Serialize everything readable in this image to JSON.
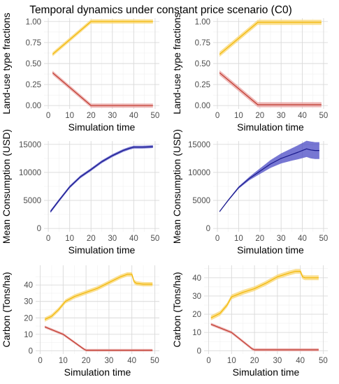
{
  "title": "Temporal dynamics under constant price scenario (C0)",
  "colors": {
    "yellow": "#F2B705",
    "yellow_band": "#F9D56E",
    "red": "#C0392B",
    "red_band": "#E8A0A0",
    "blue": "#1A1A8C",
    "blue_band": "#4A4AC4"
  },
  "chart_data": [
    {
      "type": "line",
      "xlabel": "Simulation time",
      "ylabel": "Land-use type fractions",
      "xlim": [
        0,
        50
      ],
      "ylim": [
        0,
        1
      ],
      "xticks": [
        "0",
        "10",
        "20",
        "30",
        "40",
        "50"
      ],
      "yticks": [
        "0.00",
        "0.25",
        "0.50",
        "0.75",
        "1.00"
      ],
      "grid": true,
      "series": [
        {
          "color": "yellow",
          "band": 0.025,
          "x": [
            2,
            20,
            49
          ],
          "y": [
            0.61,
            1.0,
            1.0
          ]
        },
        {
          "color": "red",
          "band": 0.025,
          "x": [
            2,
            20,
            49
          ],
          "y": [
            0.39,
            0.0,
            0.0
          ]
        }
      ]
    },
    {
      "type": "line",
      "xlabel": "Simulation time",
      "ylabel": "Land-use type fractions",
      "xlim": [
        0,
        50
      ],
      "ylim": [
        0,
        1
      ],
      "xticks": [
        "0",
        "10",
        "20",
        "30",
        "40",
        "50"
      ],
      "yticks": [
        "0.00",
        "0.25",
        "0.50",
        "0.75",
        "1.00"
      ],
      "grid": true,
      "series": [
        {
          "color": "yellow",
          "band": 0.03,
          "x": [
            1,
            19,
            49
          ],
          "y": [
            0.61,
            0.99,
            0.99
          ]
        },
        {
          "color": "red",
          "band": 0.03,
          "x": [
            1,
            19,
            49
          ],
          "y": [
            0.39,
            0.01,
            0.01
          ]
        }
      ]
    },
    {
      "type": "line",
      "xlabel": "Simulation time",
      "ylabel": "Mean Consumption (USD)",
      "xlim": [
        0,
        50
      ],
      "ylim": [
        0,
        15000
      ],
      "xticks": [
        "0",
        "10",
        "20",
        "30",
        "40",
        "50"
      ],
      "yticks": [
        "0",
        "5000",
        "10000",
        "15000"
      ],
      "grid": true,
      "series": [
        {
          "color": "blue",
          "band": 250,
          "x": [
            1,
            5,
            10,
            15,
            20,
            25,
            30,
            35,
            38,
            40,
            44,
            47,
            49
          ],
          "y": [
            3000,
            5000,
            7400,
            9200,
            10500,
            11900,
            13000,
            13900,
            14300,
            14500,
            14500,
            14550,
            14600
          ]
        }
      ]
    },
    {
      "type": "line",
      "xlabel": "Simulation time",
      "ylabel": "Mean Consumption (USD)",
      "xlim": [
        0,
        50
      ],
      "ylim": [
        0,
        15000
      ],
      "xticks": [
        "0",
        "10",
        "20",
        "30",
        "40",
        "50"
      ],
      "yticks": [
        "0",
        "5000",
        "10000",
        "15000"
      ],
      "grid": true,
      "series": [
        {
          "color": "blue",
          "x": [
            1,
            5,
            10,
            15,
            20,
            25,
            30,
            35,
            38,
            40,
            42,
            44,
            46,
            48
          ],
          "y": [
            3000,
            5000,
            7300,
            8900,
            10200,
            11500,
            12500,
            13200,
            13600,
            13900,
            14200,
            14000,
            13900,
            13900
          ],
          "band_half": [
            100,
            150,
            200,
            300,
            500,
            700,
            900,
            1100,
            1250,
            1350,
            1450,
            1500,
            1500,
            1500
          ]
        }
      ]
    },
    {
      "type": "line",
      "xlabel": "Simulation time",
      "ylabel": "Carbon (Tons/ha)",
      "xlim": [
        0,
        50
      ],
      "ylim": [
        0,
        50
      ],
      "xticks": [
        "0",
        "10",
        "20",
        "30",
        "40",
        "50"
      ],
      "yticks": [
        "0",
        "10",
        "20",
        "30",
        "40"
      ],
      "grid": true,
      "series": [
        {
          "color": "yellow",
          "band": 1.3,
          "x": [
            2,
            5,
            8,
            11,
            15,
            20,
            25,
            30,
            35,
            38,
            40,
            41,
            42,
            45,
            49
          ],
          "y": [
            19,
            21,
            25,
            30,
            33,
            35.5,
            38,
            41.5,
            45,
            46.5,
            46.5,
            42,
            41,
            40.5,
            40.5
          ]
        },
        {
          "color": "red",
          "band": 0.8,
          "x": [
            2,
            10,
            19,
            20,
            49
          ],
          "y": [
            14.5,
            10,
            1,
            0.3,
            0.3
          ]
        }
      ]
    },
    {
      "type": "line",
      "xlabel": "Simulation time",
      "ylabel": "Carbon (Tons/ha)",
      "xlim": [
        0,
        50
      ],
      "ylim": [
        0,
        45
      ],
      "xticks": [
        "0",
        "10",
        "20",
        "30",
        "40",
        "50"
      ],
      "yticks": [
        "0",
        "10",
        "20",
        "30",
        "40"
      ],
      "grid": true,
      "series": [
        {
          "color": "yellow",
          "band": 1.3,
          "x": [
            1,
            5,
            8,
            10,
            15,
            20,
            25,
            30,
            35,
            38,
            40,
            41,
            42,
            45,
            48
          ],
          "y": [
            18,
            20.5,
            25,
            29.5,
            32,
            34,
            37,
            40.5,
            42.5,
            43.5,
            43.5,
            40.5,
            40,
            40,
            40
          ]
        },
        {
          "color": "red",
          "band": 0.8,
          "x": [
            1,
            10,
            19,
            20,
            48
          ],
          "y": [
            14.5,
            10,
            1,
            0.5,
            0.5
          ]
        }
      ]
    }
  ]
}
